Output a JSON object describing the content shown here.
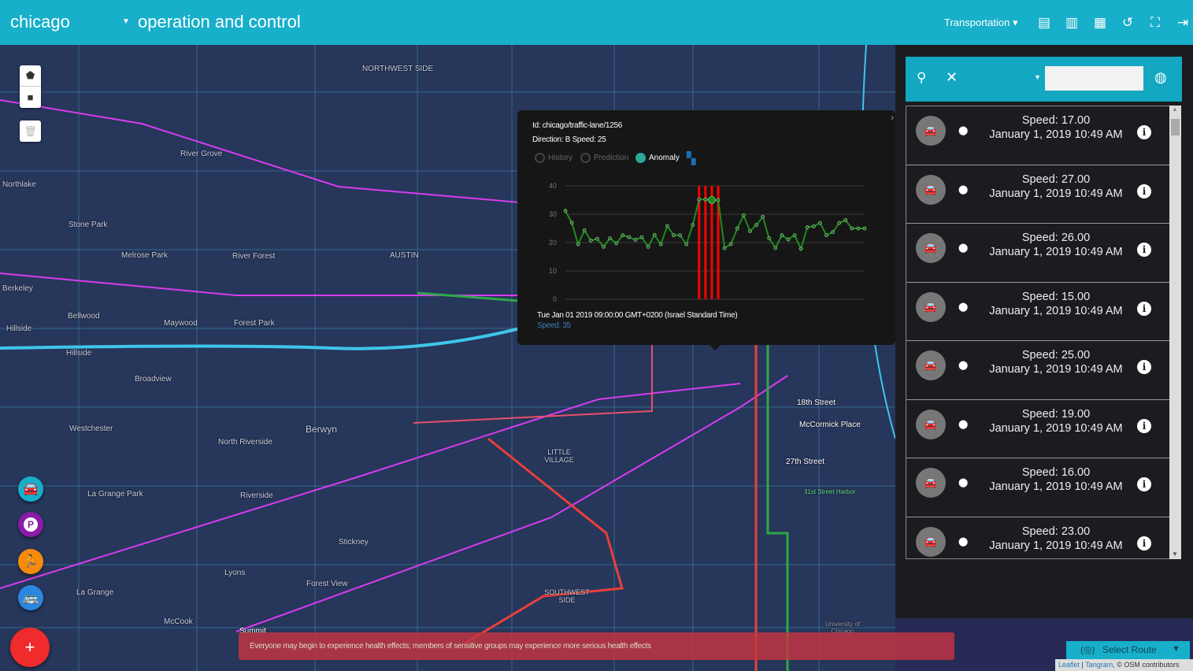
{
  "header": {
    "city": "chicago",
    "title": "operation and control",
    "domain": "Transportation",
    "icons": [
      "chat-icon",
      "chart-icon",
      "dashboard-icon",
      "history-icon",
      "fullscreen-icon",
      "logout-icon"
    ]
  },
  "map": {
    "places": [
      "NORTHWEST SIDE",
      "River Grove",
      "Northlake",
      "Stone Park",
      "Melrose Park",
      "River Forest",
      "AUSTIN",
      "Berkeley",
      "Bellwood",
      "Maywood",
      "Forest Park",
      "Hillside",
      "Hillside",
      "Broadview",
      "Westchester",
      "Berwyn",
      "North Riverside",
      "LITTLE VILLAGE",
      "La Grange Park",
      "Riverside",
      "Stickney",
      "Lyons",
      "Forest View",
      "La Grange",
      "McCook",
      "SOUTHWEST SIDE",
      "18th Street",
      "McCormick Place",
      "27th Street",
      "31st Street Harbor",
      "University of Chicago",
      "Summit"
    ],
    "route_colors": {
      "metra": "#d63cf0",
      "highway": "#3ec6e8",
      "cta_red": "#e8403a",
      "cta_green": "#2ea84a"
    }
  },
  "popup": {
    "id": "Id: chicago/traffic-lane/1256",
    "direction": "Direction: B Speed: 25",
    "modes": [
      {
        "label": "History",
        "selected": false
      },
      {
        "label": "Prediction",
        "selected": false
      },
      {
        "label": "Anomaly",
        "selected": true
      }
    ],
    "tooltip_time": "Tue Jan 01 2019 09:00:00 GMT+0200 (Israel Standard Time)",
    "tooltip_speed": "Speed: 35"
  },
  "chart_data": {
    "type": "line",
    "title": "",
    "xlabel": "",
    "ylabel": "",
    "ylim": [
      0,
      40
    ],
    "yticks": [
      "0",
      "10",
      "20",
      "30",
      "40"
    ],
    "grid": true,
    "series": [
      {
        "color": "#1f8a1f",
        "values": [
          31.2,
          27,
          19.4,
          24.3,
          20.7,
          21.3,
          18.5,
          21.5,
          19.7,
          22.6,
          21.9,
          21,
          21.9,
          18.5,
          22.7,
          19.4,
          25.9,
          22.6,
          22.6,
          19.4,
          26.2,
          35.2,
          35.2,
          35,
          35,
          18,
          19.5,
          25,
          29.6,
          24,
          26.2,
          29.1,
          21.5,
          18.1,
          22.6,
          21.1,
          22.6,
          17.8,
          25.4,
          25.7,
          26.9,
          22.6,
          23.7,
          26.9,
          27.9,
          25,
          25,
          25
        ]
      }
    ],
    "anomaly_indices": [
      21,
      22,
      23,
      24
    ],
    "anomaly_color": "#ff0000",
    "selected_index": 23
  },
  "panel": {
    "search_placeholder": "",
    "items": [
      {
        "speed": "Speed: 17.00",
        "date": "January 1, 2019 10:49 AM"
      },
      {
        "speed": "Speed: 27.00",
        "date": "January 1, 2019 10:49 AM"
      },
      {
        "speed": "Speed: 26.00",
        "date": "January 1, 2019 10:49 AM"
      },
      {
        "speed": "Speed: 15.00",
        "date": "January 1, 2019 10:49 AM"
      },
      {
        "speed": "Speed: 25.00",
        "date": "January 1, 2019 10:49 AM"
      },
      {
        "speed": "Speed: 19.00",
        "date": "January 1, 2019 10:49 AM"
      },
      {
        "speed": "Speed: 16.00",
        "date": "January 1, 2019 10:49 AM"
      },
      {
        "speed": "Speed: 23.00",
        "date": "January 1, 2019 10:49 AM"
      }
    ]
  },
  "alert": "Everyone may begin to experience health effects; members of sensitive groups may experience more serious health effects",
  "route_select": "Select Route",
  "attribution": {
    "leaflet": "Leaflet",
    "tangram": "Tangram",
    "osm": ", © OSM contributors"
  }
}
